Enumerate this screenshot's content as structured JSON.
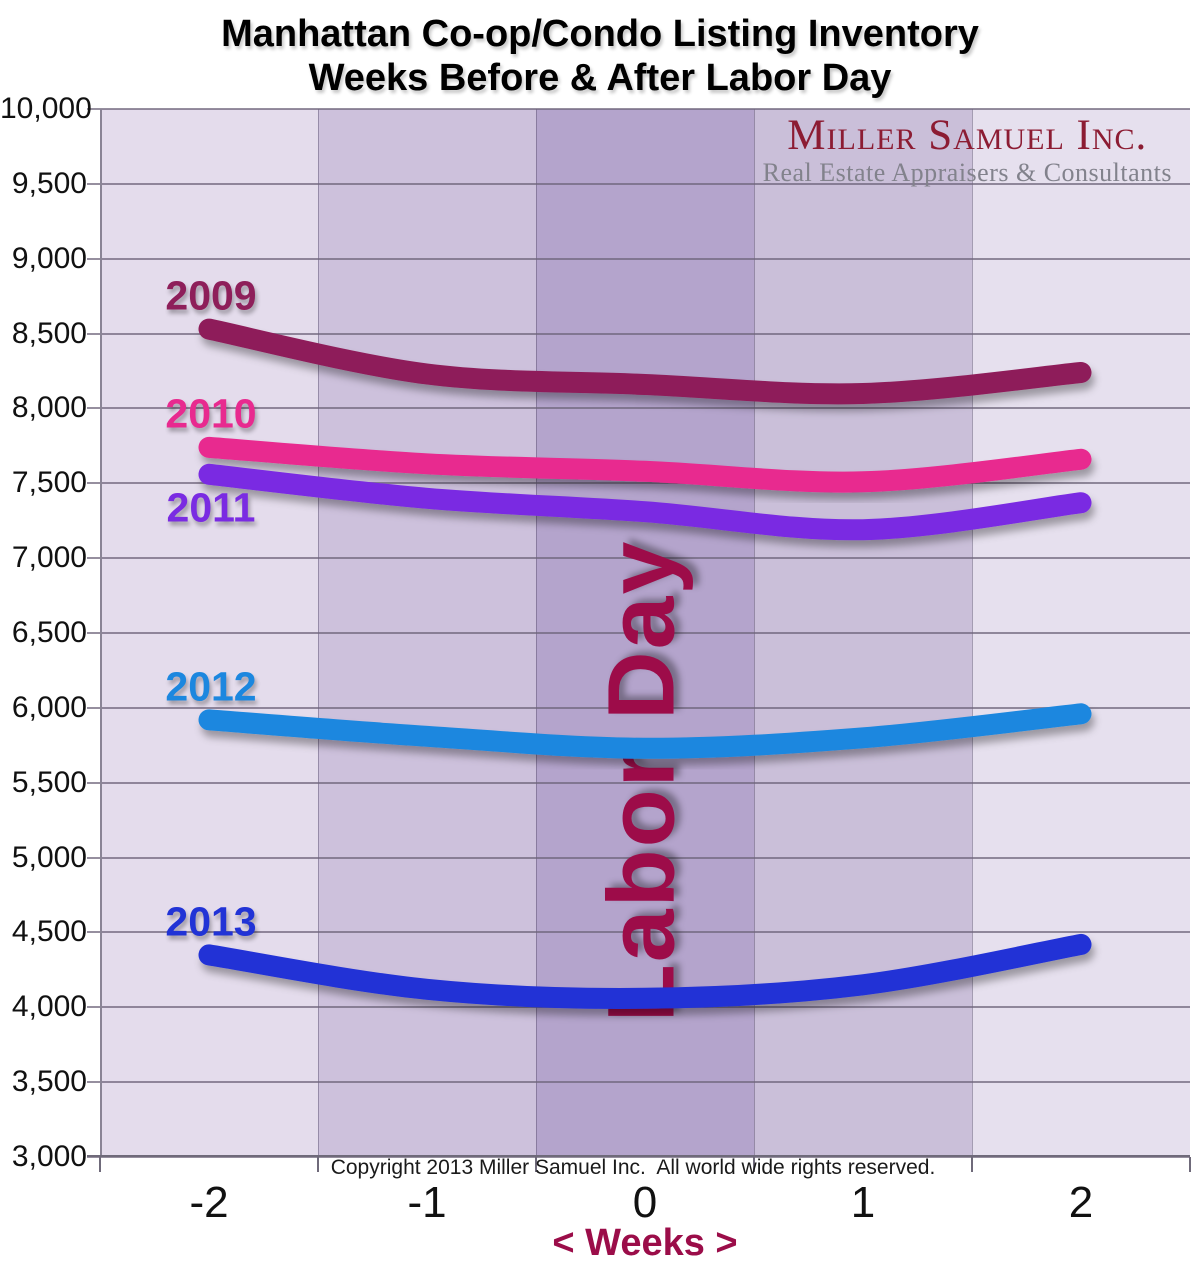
{
  "title": {
    "line1": "Manhattan Co-op/Condo Listing Inventory",
    "line2": "Weeks Before & After Labor Day"
  },
  "logo": {
    "company": "Miller Samuel Inc.",
    "tagline": "Real Estate Appraisers & Consultants"
  },
  "watermark": "Labor Day",
  "footer": {
    "copyright": "Copyright 2013 Miller Samuel Inc.  All world wide rights reserved.",
    "x_axis_caption": "< Weeks >"
  },
  "chart_data": {
    "type": "line",
    "title": "Manhattan Co-op/Condo Listing Inventory Weeks Before & After Labor Day",
    "xlabel": "< Weeks >",
    "ylabel": "",
    "x": [
      -2,
      -1,
      0,
      1,
      2
    ],
    "x_tick_labels": [
      "-2",
      "-1",
      "0",
      "1",
      "2"
    ],
    "ylim": [
      3000,
      10000
    ],
    "ytick_step": 500,
    "grid": true,
    "legend_position": "inline-line-start-labels",
    "series": [
      {
        "name": "2009",
        "color": "#8E1F5A",
        "label_side": "above",
        "values": [
          8530,
          8230,
          8160,
          8100,
          8240
        ]
      },
      {
        "name": "2010",
        "color": "#E82A8F",
        "label_side": "above",
        "values": [
          7740,
          7630,
          7580,
          7510,
          7660
        ]
      },
      {
        "name": "2011",
        "color": "#7A2BE2",
        "label_side": "below",
        "values": [
          7560,
          7400,
          7310,
          7190,
          7370
        ]
      },
      {
        "name": "2012",
        "color": "#1C87DF",
        "label_side": "above",
        "values": [
          5920,
          5810,
          5730,
          5800,
          5960
        ]
      },
      {
        "name": "2013",
        "color": "#2133D6",
        "label_side": "above",
        "values": [
          4350,
          4120,
          4060,
          4150,
          4420
        ]
      }
    ],
    "plot_band_colors": [
      "#e4dcec",
      "#cdc1dc",
      "#b4a4cc",
      "#cabfd9",
      "#e6e0ee"
    ],
    "watermark_color": "#9D0C49"
  }
}
